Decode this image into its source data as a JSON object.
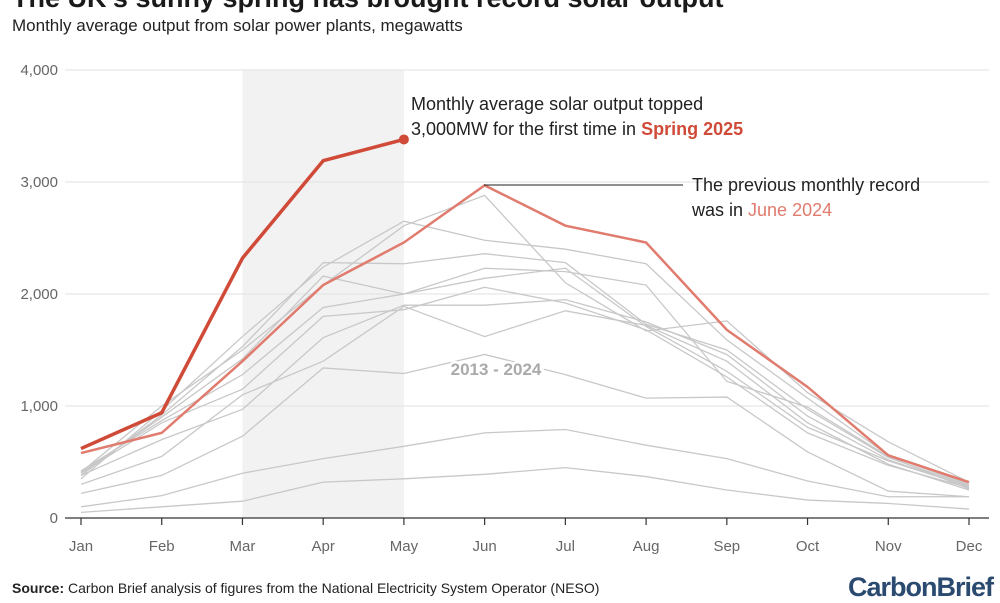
{
  "title": "The UK's sunny spring has brought record solar output",
  "subtitle": "Monthly average output from solar power plants, megawatts",
  "source_label": "Source:",
  "source_text": " Carbon Brief analysis of figures from the National Electricity System Operator (NESO)",
  "logo": "CarbonBrief",
  "colors": {
    "highlight_2025": "#d04a38",
    "record_2024": "#e07b6e",
    "history": "#c8c8c8",
    "shade": "#f2f2f2"
  },
  "chart_data": {
    "type": "line",
    "title": "The UK's sunny spring has brought record solar output",
    "subtitle": "Monthly average output from solar power plants, megawatts",
    "categories": [
      "Jan",
      "Feb",
      "Mar",
      "Apr",
      "May",
      "Jun",
      "Jul",
      "Aug",
      "Sep",
      "Oct",
      "Nov",
      "Dec"
    ],
    "ylim": [
      0,
      4000
    ],
    "yticks": [
      0,
      1000,
      2000,
      3000,
      4000
    ],
    "ytick_labels": [
      "0",
      "1,000",
      "2,000",
      "3,000",
      "4,000"
    ],
    "grid": true,
    "shaded_months": [
      "Mar",
      "May"
    ],
    "history_label": "2013 - 2024",
    "history": [
      [
        50,
        100,
        150,
        320,
        350,
        390,
        450,
        370,
        250,
        160,
        130,
        80
      ],
      [
        100,
        200,
        400,
        530,
        640,
        760,
        790,
        650,
        530,
        330,
        190,
        190
      ],
      [
        220,
        380,
        730,
        1340,
        1290,
        1460,
        1280,
        1070,
        1080,
        590,
        240,
        190
      ],
      [
        300,
        550,
        1100,
        1400,
        1890,
        1620,
        1850,
        1720,
        1400,
        850,
        480,
        250
      ],
      [
        380,
        700,
        970,
        1610,
        1900,
        1900,
        1950,
        1750,
        1460,
        910,
        520,
        280
      ],
      [
        400,
        850,
        1150,
        1800,
        1860,
        2060,
        1920,
        1680,
        1260,
        760,
        470,
        270
      ],
      [
        420,
        870,
        1280,
        1880,
        2000,
        2140,
        2230,
        1710,
        1310,
        810,
        510,
        280
      ],
      [
        400,
        900,
        1420,
        2160,
        2000,
        2230,
        2200,
        2080,
        1220,
        990,
        550,
        260
      ],
      [
        380,
        920,
        1530,
        2280,
        2270,
        2360,
        2280,
        1730,
        1500,
        970,
        540,
        290
      ],
      [
        350,
        960,
        1620,
        2240,
        2650,
        2480,
        2400,
        2270,
        1590,
        1070,
        560,
        300
      ],
      [
        410,
        1000,
        1500,
        2080,
        2610,
        2880,
        2100,
        1670,
        1760,
        1120,
        680,
        320
      ]
    ],
    "series": [
      {
        "name": "June 2024",
        "values": [
          580,
          760,
          1400,
          2080,
          2460,
          2970,
          2610,
          2460,
          1680,
          1170,
          560,
          320
        ]
      },
      {
        "name": "Spring 2025",
        "values": [
          620,
          940,
          2320,
          3190,
          3380,
          null,
          null,
          null,
          null,
          null,
          null,
          null
        ]
      }
    ],
    "annotations": {
      "a2025_line1": "Monthly average solar output topped",
      "a2025_line2": "3,000MW for the first time in ",
      "a2025_highlight": "Spring 2025",
      "a2024_line1": "The previous monthly record",
      "a2024_line2": "was in ",
      "a2024_highlight": "June 2024"
    }
  }
}
